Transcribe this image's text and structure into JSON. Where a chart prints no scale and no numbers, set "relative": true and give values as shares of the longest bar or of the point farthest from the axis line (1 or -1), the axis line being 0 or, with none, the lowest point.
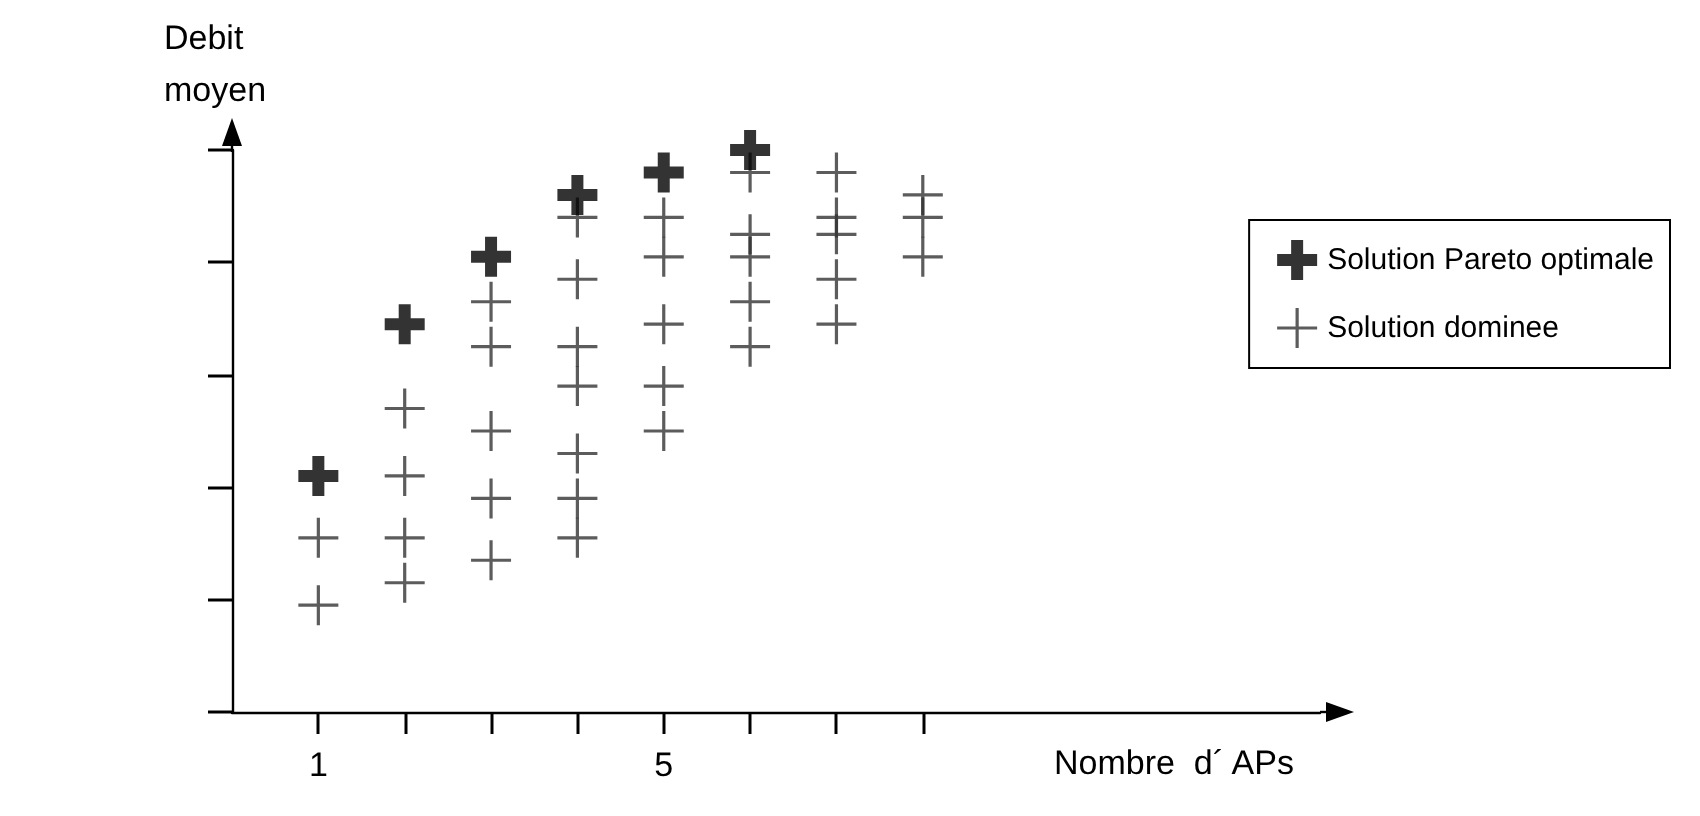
{
  "chart_data": {
    "type": "scatter",
    "xlabel": "Nombre  d´ APs",
    "ylabel": "Debit moyen",
    "relative": true,
    "xlim": [
      0,
      12.6
    ],
    "xticks": [
      1,
      {
        "value": 2,
        "label": null
      },
      {
        "value": 3,
        "label": null
      },
      {
        "value": 4,
        "label": null
      },
      5,
      {
        "value": 6,
        "label": null
      },
      {
        "value": 7,
        "label": null
      },
      {
        "value": 8,
        "label": null
      }
    ],
    "marker": "cross",
    "grid": false,
    "legend": "top right",
    "tick_labels": "x",
    "series": [
      {
        "name": "Solution Pareto optimale",
        "color": "#000000",
        "x": [
          1,
          2,
          3,
          4,
          5,
          6
        ],
        "values": [
          0.42,
          0.69,
          0.81,
          0.92,
          0.96,
          1.0
        ]
      },
      {
        "name": "Solution dominee",
        "color": "#333333",
        "x": [
          1,
          1,
          2,
          2,
          2,
          2,
          3,
          3,
          3,
          3,
          3,
          4,
          4,
          4,
          4,
          4,
          4,
          4,
          5,
          5,
          5,
          5,
          5,
          6,
          6,
          6,
          6,
          6,
          7,
          7,
          7,
          7,
          7,
          8,
          8,
          8
        ],
        "values": [
          0.31,
          0.19,
          0.54,
          0.42,
          0.31,
          0.23,
          0.73,
          0.65,
          0.5,
          0.38,
          0.27,
          0.88,
          0.77,
          0.65,
          0.58,
          0.46,
          0.38,
          0.31,
          0.88,
          0.81,
          0.69,
          0.58,
          0.5,
          0.96,
          0.85,
          0.81,
          0.73,
          0.65,
          0.96,
          0.88,
          0.85,
          0.77,
          0.69,
          0.92,
          0.88,
          0.81
        ]
      }
    ]
  }
}
